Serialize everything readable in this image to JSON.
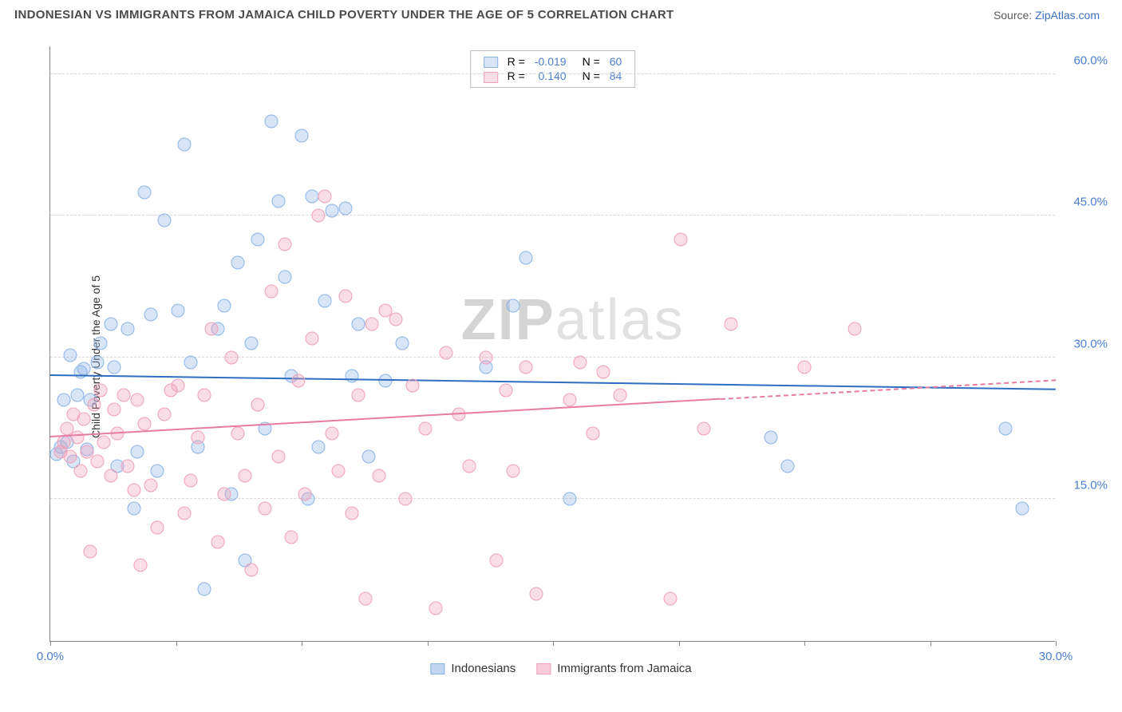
{
  "title": "INDONESIAN VS IMMIGRANTS FROM JAMAICA CHILD POVERTY UNDER THE AGE OF 5 CORRELATION CHART",
  "source_label": "Source: ",
  "source_name": "ZipAtlas.com",
  "ylabel": "Child Poverty Under the Age of 5",
  "watermark_a": "ZIP",
  "watermark_b": "atlas",
  "chart": {
    "type": "scatter",
    "xlim": [
      0,
      30
    ],
    "ylim": [
      0,
      63
    ],
    "x_ticks": [
      0,
      3.75,
      7.5,
      11.25,
      15,
      18.75,
      22.5,
      26.25,
      30
    ],
    "x_tick_labels": {
      "0": "0.0%",
      "30": "30.0%"
    },
    "y_gridlines": [
      15,
      30,
      45,
      60
    ],
    "y_tick_labels": {
      "15": "15.0%",
      "30": "30.0%",
      "45": "45.0%",
      "60": "60.0%"
    },
    "grid_color": "#d8d8d8",
    "axis_color": "#888888",
    "background": "#ffffff",
    "tick_label_color": "#4a7fd0",
    "marker_radius": 8.5,
    "marker_stroke_width": 1.4,
    "series": [
      {
        "name": "Indonesians",
        "fill": "rgba(140,180,230,0.35)",
        "stroke": "#8ab4e6",
        "r_label": "R =",
        "r_value": "-0.019",
        "n_label": "N =",
        "n_value": "60",
        "trend": {
          "x0": 0,
          "y0": 28.0,
          "x1": 30,
          "y1": 26.5,
          "color": "#2e6ec0",
          "dashed_from": null
        },
        "points": [
          [
            0.2,
            19.8
          ],
          [
            0.3,
            20.5
          ],
          [
            0.4,
            25.5
          ],
          [
            0.5,
            21.0
          ],
          [
            0.6,
            30.2
          ],
          [
            0.7,
            19.0
          ],
          [
            0.8,
            26.0
          ],
          [
            0.9,
            28.5
          ],
          [
            1.0,
            28.8
          ],
          [
            1.1,
            20.3
          ],
          [
            1.2,
            25.5
          ],
          [
            1.4,
            29.5
          ],
          [
            1.5,
            31.5
          ],
          [
            1.8,
            33.5
          ],
          [
            1.9,
            29.0
          ],
          [
            2.0,
            18.5
          ],
          [
            2.3,
            33.0
          ],
          [
            2.5,
            14.0
          ],
          [
            2.6,
            20.0
          ],
          [
            2.8,
            47.5
          ],
          [
            3.0,
            34.5
          ],
          [
            3.2,
            18.0
          ],
          [
            3.4,
            44.5
          ],
          [
            3.8,
            35.0
          ],
          [
            4.0,
            52.5
          ],
          [
            4.2,
            29.5
          ],
          [
            4.4,
            20.5
          ],
          [
            4.6,
            5.5
          ],
          [
            5.0,
            33.0
          ],
          [
            5.2,
            35.5
          ],
          [
            5.4,
            15.5
          ],
          [
            5.6,
            40.0
          ],
          [
            5.8,
            8.5
          ],
          [
            6.0,
            31.5
          ],
          [
            6.2,
            42.5
          ],
          [
            6.4,
            22.5
          ],
          [
            6.6,
            55.0
          ],
          [
            6.8,
            46.5
          ],
          [
            7.0,
            38.5
          ],
          [
            7.2,
            28.0
          ],
          [
            7.5,
            53.5
          ],
          [
            7.7,
            15.0
          ],
          [
            7.8,
            47.0
          ],
          [
            8.0,
            20.5
          ],
          [
            8.2,
            36.0
          ],
          [
            8.4,
            45.5
          ],
          [
            8.8,
            45.8
          ],
          [
            9.0,
            28.0
          ],
          [
            9.2,
            33.5
          ],
          [
            9.5,
            19.5
          ],
          [
            10.0,
            27.5
          ],
          [
            10.5,
            31.5
          ],
          [
            13.0,
            29.0
          ],
          [
            13.8,
            35.5
          ],
          [
            14.2,
            40.5
          ],
          [
            15.5,
            15.0
          ],
          [
            21.5,
            21.5
          ],
          [
            22.0,
            18.5
          ],
          [
            28.5,
            22.5
          ],
          [
            29.0,
            14.0
          ]
        ]
      },
      {
        "name": "Immigrants from Jamaica",
        "fill": "rgba(240,160,185,0.35)",
        "stroke": "#f0a0b9",
        "r_label": "R =",
        "r_value": "0.140",
        "n_label": "N =",
        "n_value": "84",
        "trend": {
          "x0": 0,
          "y0": 21.5,
          "x1": 30,
          "y1": 27.5,
          "color": "#e67ba3",
          "dashed_from": 20
        },
        "points": [
          [
            0.3,
            20.0
          ],
          [
            0.4,
            21.0
          ],
          [
            0.5,
            22.5
          ],
          [
            0.6,
            19.5
          ],
          [
            0.7,
            24.0
          ],
          [
            0.8,
            21.5
          ],
          [
            0.9,
            18.0
          ],
          [
            1.0,
            23.5
          ],
          [
            1.1,
            20.0
          ],
          [
            1.2,
            9.5
          ],
          [
            1.3,
            25.0
          ],
          [
            1.4,
            19.0
          ],
          [
            1.5,
            26.5
          ],
          [
            1.6,
            21.0
          ],
          [
            1.8,
            17.5
          ],
          [
            1.9,
            24.5
          ],
          [
            2.0,
            22.0
          ],
          [
            2.2,
            26.0
          ],
          [
            2.3,
            18.5
          ],
          [
            2.5,
            16.0
          ],
          [
            2.6,
            25.5
          ],
          [
            2.7,
            8.0
          ],
          [
            2.8,
            23.0
          ],
          [
            3.0,
            16.5
          ],
          [
            3.2,
            12.0
          ],
          [
            3.4,
            24.0
          ],
          [
            3.6,
            26.5
          ],
          [
            3.8,
            27.0
          ],
          [
            4.0,
            13.5
          ],
          [
            4.2,
            17.0
          ],
          [
            4.4,
            21.5
          ],
          [
            4.6,
            26.0
          ],
          [
            4.8,
            33.0
          ],
          [
            5.0,
            10.5
          ],
          [
            5.2,
            15.5
          ],
          [
            5.4,
            30.0
          ],
          [
            5.6,
            22.0
          ],
          [
            5.8,
            17.5
          ],
          [
            6.0,
            7.5
          ],
          [
            6.2,
            25.0
          ],
          [
            6.4,
            14.0
          ],
          [
            6.6,
            37.0
          ],
          [
            6.8,
            19.5
          ],
          [
            7.0,
            42.0
          ],
          [
            7.2,
            11.0
          ],
          [
            7.4,
            27.5
          ],
          [
            7.6,
            15.5
          ],
          [
            7.8,
            32.0
          ],
          [
            8.0,
            45.0
          ],
          [
            8.2,
            47.0
          ],
          [
            8.4,
            22.0
          ],
          [
            8.6,
            18.0
          ],
          [
            8.8,
            36.5
          ],
          [
            9.0,
            13.5
          ],
          [
            9.2,
            26.0
          ],
          [
            9.4,
            4.5
          ],
          [
            9.6,
            33.5
          ],
          [
            9.8,
            17.5
          ],
          [
            10.0,
            35.0
          ],
          [
            10.3,
            34.0
          ],
          [
            10.6,
            15.0
          ],
          [
            10.8,
            27.0
          ],
          [
            11.2,
            22.5
          ],
          [
            11.5,
            3.5
          ],
          [
            11.8,
            30.5
          ],
          [
            12.2,
            24.0
          ],
          [
            12.5,
            18.5
          ],
          [
            13.0,
            30.0
          ],
          [
            13.3,
            8.5
          ],
          [
            13.6,
            26.5
          ],
          [
            13.8,
            18.0
          ],
          [
            14.2,
            29.0
          ],
          [
            14.5,
            5.0
          ],
          [
            15.5,
            25.5
          ],
          [
            15.8,
            29.5
          ],
          [
            16.2,
            22.0
          ],
          [
            16.5,
            28.5
          ],
          [
            17.0,
            26.0
          ],
          [
            18.5,
            4.5
          ],
          [
            18.8,
            42.5
          ],
          [
            19.5,
            22.5
          ],
          [
            20.3,
            33.5
          ],
          [
            22.5,
            29.0
          ],
          [
            24.0,
            33.0
          ]
        ]
      }
    ]
  },
  "legend_bottom": [
    {
      "name": "Indonesians",
      "fill": "rgba(140,180,230,0.55)",
      "stroke": "#8ab4e6"
    },
    {
      "name": "Immigrants from Jamaica",
      "fill": "rgba(240,160,185,0.55)",
      "stroke": "#f0a0b9"
    }
  ]
}
